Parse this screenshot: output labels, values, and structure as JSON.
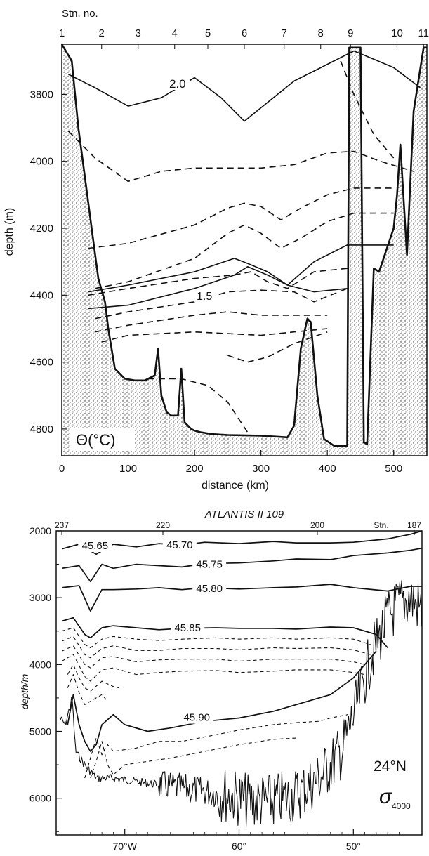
{
  "chart_data": [
    {
      "type": "line",
      "panel": "potential-temperature-section",
      "top_axis_title": "Stn. no.",
      "stations": [
        "1",
        "2",
        "3",
        "4",
        "5",
        "6",
        "7",
        "8",
        "9",
        "10",
        "11"
      ],
      "station_distance_km": [
        0,
        60,
        115,
        170,
        220,
        275,
        335,
        390,
        435,
        505,
        545
      ],
      "xlabel": "distance (km)",
      "ylabel": "depth (m)",
      "x_ticks": [
        "0",
        "100",
        "200",
        "300",
        "400",
        "500"
      ],
      "y_ticks": [
        "3800",
        "4000",
        "4200",
        "4400",
        "4600",
        "4800"
      ],
      "xlim": [
        0,
        550
      ],
      "ylim": [
        3650,
        4880
      ],
      "variable_label": "Θ(°C)",
      "contour_labels": [
        "2.0",
        "1.5"
      ],
      "series": [
        {
          "style": "solid",
          "label": "2.0",
          "x": [
            10,
            50,
            100,
            150,
            200,
            240,
            275,
            300,
            350,
            400,
            440,
            500,
            540
          ],
          "y": [
            3740,
            3780,
            3835,
            3810,
            3750,
            3810,
            3880,
            3840,
            3760,
            3710,
            3670,
            3720,
            3780
          ]
        },
        {
          "style": "dashed",
          "x": [
            10,
            50,
            100,
            150,
            200,
            250,
            300,
            350,
            400,
            440,
            480,
            530
          ],
          "y": [
            3910,
            3990,
            4060,
            4030,
            4020,
            4020,
            4020,
            4010,
            3975,
            3970,
            4000,
            4030
          ]
        },
        {
          "style": "dashed",
          "x": [
            420,
            440,
            470,
            500
          ],
          "y": [
            3700,
            3800,
            3920,
            3990
          ]
        },
        {
          "style": "dashed",
          "x": [
            40,
            100,
            200,
            250,
            275,
            300,
            330,
            360,
            400,
            440,
            500
          ],
          "y": [
            4260,
            4245,
            4190,
            4140,
            4125,
            4135,
            4175,
            4140,
            4100,
            4080,
            4080
          ]
        },
        {
          "style": "dashed",
          "x": [
            50,
            100,
            200,
            250,
            275,
            300,
            330,
            360,
            400,
            440,
            500
          ],
          "y": [
            4380,
            4360,
            4290,
            4215,
            4190,
            4215,
            4260,
            4230,
            4180,
            4155,
            4155
          ]
        },
        {
          "style": "solid",
          "x": [
            40,
            100,
            200,
            260,
            280,
            310,
            340,
            380,
            430,
            500
          ],
          "y": [
            4390,
            4370,
            4330,
            4290,
            4305,
            4330,
            4370,
            4300,
            4250,
            4250
          ]
        },
        {
          "style": "dashed",
          "x": [
            40,
            100,
            200,
            260,
            285,
            310,
            340,
            380,
            430
          ],
          "y": [
            4400,
            4380,
            4350,
            4340,
            4330,
            4360,
            4380,
            4330,
            4320
          ]
        },
        {
          "style": "solid",
          "label": "1.5",
          "x": [
            40,
            100,
            200,
            260,
            280,
            310,
            340,
            380,
            430
          ],
          "y": [
            4440,
            4430,
            4380,
            4340,
            4315,
            4340,
            4370,
            4390,
            4380
          ]
        },
        {
          "style": "dashed",
          "x": [
            50,
            100,
            200,
            250,
            300,
            350,
            380,
            430
          ],
          "y": [
            4470,
            4450,
            4420,
            4390,
            4385,
            4390,
            4420,
            4380
          ]
        },
        {
          "style": "dashed",
          "x": [
            50,
            100,
            200,
            250,
            300,
            350,
            400
          ],
          "y": [
            4510,
            4490,
            4460,
            4450,
            4460,
            4460,
            4460
          ]
        },
        {
          "style": "dashed",
          "x": [
            60,
            100,
            200,
            250,
            300,
            350,
            400
          ],
          "y": [
            4540,
            4520,
            4510,
            4515,
            4520,
            4510,
            4500
          ]
        },
        {
          "style": "dashed",
          "x": [
            250,
            280,
            310,
            350,
            400
          ],
          "y": [
            4580,
            4600,
            4585,
            4545,
            4510
          ]
        },
        {
          "style": "dashed",
          "x": [
            130,
            180,
            220,
            250,
            280
          ],
          "y": [
            4650,
            4650,
            4670,
            4720,
            4810
          ]
        }
      ],
      "seafloor": {
        "x": [
          0,
          15,
          25,
          35,
          45,
          55,
          65,
          70,
          80,
          95,
          110,
          125,
          140,
          145,
          150,
          158,
          165,
          175,
          180,
          185,
          190,
          195,
          200,
          210,
          225,
          250,
          300,
          340,
          350,
          360,
          370,
          375,
          385,
          395,
          410,
          430,
          433,
          450,
          455,
          460,
          470,
          478,
          500,
          505,
          510,
          520,
          530,
          545,
          550
        ],
        "y": [
          3650,
          3700,
          3900,
          4050,
          4200,
          4350,
          4420,
          4500,
          4620,
          4650,
          4655,
          4655,
          4640,
          4560,
          4700,
          4750,
          4760,
          4760,
          4620,
          4780,
          4790,
          4800,
          4805,
          4810,
          4815,
          4818,
          4820,
          4825,
          4790,
          4560,
          4470,
          4480,
          4700,
          4830,
          4850,
          4850,
          3660,
          3660,
          4840,
          4845,
          4320,
          4330,
          4200,
          4100,
          3950,
          4280,
          3850,
          3660,
          3660
        ]
      }
    },
    {
      "type": "line",
      "panel": "sigma-4000-section",
      "title": "ATLANTIS II 109",
      "top_axis_labels": [
        "237",
        "220",
        "200",
        "Stn.",
        "187"
      ],
      "ylabel": "depth/m",
      "x_ticks": [
        "70°W",
        "60°",
        "50°"
      ],
      "y_ticks": [
        "2000",
        "3000",
        "4000",
        "5000",
        "6000"
      ],
      "xlim": [
        -76,
        -44
      ],
      "ylim": [
        2000,
        6550
      ],
      "latitude_label": "24°N",
      "variable_label": "σ4000",
      "contour_labels": [
        "45.65",
        "45.70",
        "45.75",
        "45.80",
        "45.85",
        "45.90"
      ],
      "series": [
        {
          "style": "solid",
          "label": "45.65",
          "x": [
            -75.5,
            -74,
            -72.5,
            -71,
            -69,
            -67,
            -65,
            -63,
            -60,
            -57,
            -55,
            -52,
            -50,
            -47,
            -45,
            -44
          ],
          "y": [
            2270,
            2200,
            2350,
            2200,
            2240,
            2190,
            2210,
            2170,
            2190,
            2160,
            2180,
            2180,
            2170,
            2120,
            2050,
            2000
          ]
        },
        {
          "style": "solid",
          "label": "45.75",
          "x": [
            -75.5,
            -74,
            -73,
            -72,
            -71,
            -69,
            -67,
            -65,
            -63,
            -60,
            -57,
            -55,
            -52,
            -50,
            -47,
            -45,
            -44
          ],
          "y": [
            2560,
            2520,
            2760,
            2500,
            2560,
            2500,
            2520,
            2540,
            2490,
            2480,
            2450,
            2420,
            2430,
            2370,
            2330,
            2290,
            2260
          ]
        },
        {
          "style": "solid",
          "label": "45.80",
          "x": [
            -75.5,
            -74,
            -73,
            -72,
            -71,
            -69,
            -67,
            -65,
            -63,
            -60,
            -57,
            -55,
            -52,
            -50,
            -47,
            -45,
            -44
          ],
          "y": [
            2850,
            2820,
            3200,
            2880,
            2880,
            2870,
            2850,
            2880,
            2850,
            2870,
            2850,
            2840,
            2800,
            2850,
            2900,
            2830,
            2830
          ]
        },
        {
          "style": "solid",
          "label": "45.85",
          "x": [
            -75.5,
            -74.5,
            -73.5,
            -73,
            -72,
            -71,
            -69,
            -67,
            -65,
            -62,
            -60,
            -57,
            -55,
            -52,
            -50,
            -48,
            -47
          ],
          "y": [
            3350,
            3300,
            3550,
            3600,
            3450,
            3420,
            3450,
            3480,
            3460,
            3450,
            3460,
            3460,
            3470,
            3440,
            3450,
            3550,
            3750
          ]
        },
        {
          "style": "dashed",
          "x": [
            -75.5,
            -74.5,
            -73.5,
            -73,
            -72,
            -71,
            -69,
            -67,
            -65,
            -62,
            -60,
            -57,
            -55,
            -52,
            -50,
            -48.5
          ],
          "y": [
            3500,
            3450,
            3700,
            3750,
            3620,
            3580,
            3620,
            3640,
            3620,
            3600,
            3620,
            3600,
            3620,
            3600,
            3620,
            3700
          ]
        },
        {
          "style": "dashed",
          "x": [
            -75.5,
            -74.5,
            -73.5,
            -73,
            -72,
            -71,
            -69,
            -67,
            -65,
            -62,
            -60,
            -57,
            -55,
            -52,
            -50,
            -48.5
          ],
          "y": [
            3650,
            3580,
            3850,
            3900,
            3760,
            3720,
            3790,
            3790,
            3760,
            3760,
            3780,
            3750,
            3760,
            3750,
            3780,
            3850
          ]
        },
        {
          "style": "dashed",
          "x": [
            -75.5,
            -74.5,
            -73.5,
            -73,
            -72,
            -71,
            -69,
            -67,
            -65,
            -62,
            -60,
            -57,
            -55,
            -52,
            -50,
            -49
          ],
          "y": [
            3800,
            3720,
            4000,
            4050,
            3900,
            3880,
            3960,
            3930,
            3920,
            3920,
            3950,
            3920,
            3920,
            3920,
            3960,
            4000
          ]
        },
        {
          "style": "dashed",
          "x": [
            -75.5,
            -74.5,
            -73.5,
            -73,
            -72,
            -71,
            -69,
            -67,
            -65,
            -62,
            -60,
            -57,
            -55,
            -52,
            -50,
            -49
          ],
          "y": [
            3950,
            3850,
            4180,
            4250,
            4080,
            4050,
            4150,
            4120,
            4100,
            4090,
            4120,
            4100,
            4080,
            4080,
            4120,
            4150
          ]
        },
        {
          "style": "dashed",
          "x": [
            -75,
            -74.5,
            -74,
            -73.5,
            -73,
            -72,
            -71,
            -70.5
          ],
          "y": [
            4150,
            4000,
            4200,
            4350,
            4400,
            4250,
            4330,
            4350
          ]
        },
        {
          "style": "dashed",
          "x": [
            -75,
            -74.5,
            -74,
            -73.5,
            -73,
            -72,
            -71.5
          ],
          "y": [
            4350,
            4150,
            4420,
            4600,
            4550,
            4450,
            4550
          ]
        },
        {
          "style": "solid",
          "label": "45.90",
          "x": [
            -75,
            -74.5,
            -74,
            -73.5,
            -73,
            -72.5,
            -72,
            -71,
            -70,
            -68,
            -66,
            -63,
            -60,
            -57,
            -55,
            -52,
            -50,
            -49,
            -48
          ],
          "y": [
            4900,
            4450,
            4900,
            5150,
            5300,
            5200,
            4900,
            4750,
            4900,
            5000,
            4950,
            4850,
            4800,
            4700,
            4600,
            4450,
            4200,
            4000,
            3800
          ]
        },
        {
          "style": "dashed",
          "x": [
            -73.5,
            -73,
            -72.5,
            -72,
            -71.5,
            -71,
            -69,
            -67,
            -65,
            -62,
            -60,
            -57,
            -55,
            -53,
            -52,
            -50.5
          ],
          "y": [
            5700,
            5400,
            5100,
            5350,
            5200,
            5300,
            5250,
            5150,
            5150,
            5050,
            4980,
            4900,
            4870,
            4850,
            4800,
            4750
          ]
        },
        {
          "style": "dashed",
          "x": [
            -73,
            -72.5,
            -72,
            -71.5,
            -71,
            -70,
            -68,
            -66,
            -63,
            -60,
            -57,
            -55
          ],
          "y": [
            5700,
            5450,
            5150,
            5500,
            5650,
            5500,
            5450,
            5400,
            5300,
            5200,
            5120,
            5100
          ]
        }
      ]
    }
  ]
}
